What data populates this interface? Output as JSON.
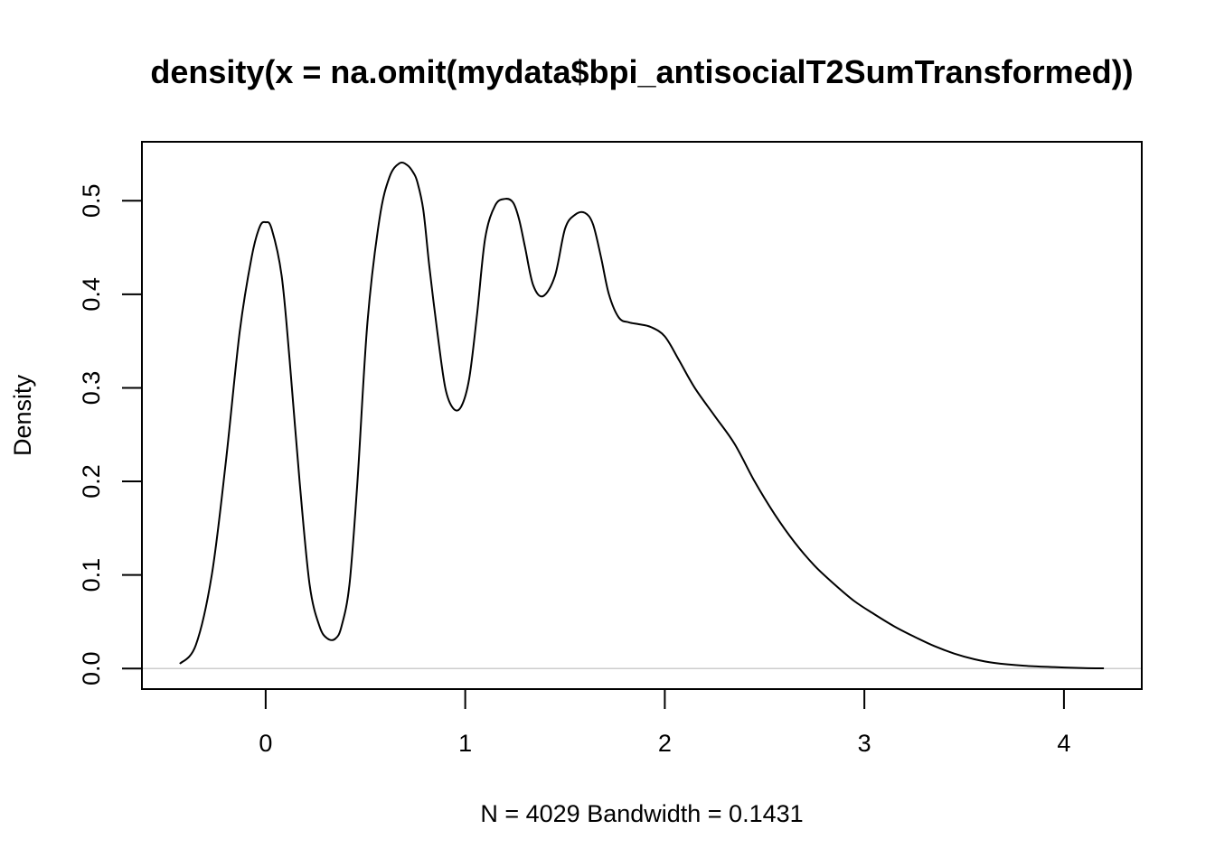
{
  "chart_data": {
    "type": "line",
    "title": "density(x = na.omit(mydata$bpi_antisocialT2SumTransformed))",
    "xlabel": "N = 4029   Bandwidth = 0.1431",
    "ylabel": "Density",
    "xlim": [
      -0.62,
      4.39
    ],
    "ylim": [
      -0.022,
      0.563
    ],
    "x_ticks": [
      0,
      1,
      2,
      3,
      4
    ],
    "x_tick_labels": [
      "0",
      "1",
      "2",
      "3",
      "4"
    ],
    "y_ticks": [
      0.0,
      0.1,
      0.2,
      0.3,
      0.4,
      0.5
    ],
    "y_tick_labels": [
      "0.0",
      "0.1",
      "0.2",
      "0.3",
      "0.4",
      "0.5"
    ],
    "grid": false,
    "zero_line": true,
    "colors": {
      "line": "#000000",
      "zero_line": "#cccccc",
      "box": "#000000"
    },
    "series": [
      {
        "x": [
          -0.43,
          -0.35,
          -0.27,
          -0.2,
          -0.13,
          -0.07,
          -0.03,
          0.0,
          0.03,
          0.08,
          0.12,
          0.17,
          0.22,
          0.27,
          0.31,
          0.35,
          0.38,
          0.42,
          0.46,
          0.51,
          0.57,
          0.62,
          0.67,
          0.71,
          0.74,
          0.76,
          0.79,
          0.82,
          0.86,
          0.9,
          0.94,
          0.98,
          1.02,
          1.06,
          1.1,
          1.15,
          1.2,
          1.24,
          1.27,
          1.3,
          1.34,
          1.39,
          1.45,
          1.5,
          1.55,
          1.6,
          1.64,
          1.68,
          1.72,
          1.77,
          1.82,
          1.87,
          1.93,
          2.0,
          2.07,
          2.15,
          2.25,
          2.35,
          2.45,
          2.55,
          2.65,
          2.75,
          2.85,
          2.95,
          3.05,
          3.15,
          3.25,
          3.35,
          3.45,
          3.55,
          3.65,
          3.8,
          3.95,
          4.1,
          4.2
        ],
        "y": [
          0.005,
          0.025,
          0.1,
          0.22,
          0.36,
          0.44,
          0.472,
          0.477,
          0.47,
          0.42,
          0.33,
          0.2,
          0.09,
          0.045,
          0.032,
          0.032,
          0.045,
          0.09,
          0.2,
          0.37,
          0.48,
          0.525,
          0.54,
          0.538,
          0.53,
          0.52,
          0.49,
          0.43,
          0.36,
          0.3,
          0.278,
          0.28,
          0.31,
          0.38,
          0.46,
          0.495,
          0.502,
          0.498,
          0.48,
          0.45,
          0.41,
          0.398,
          0.42,
          0.47,
          0.485,
          0.487,
          0.475,
          0.44,
          0.4,
          0.375,
          0.37,
          0.368,
          0.365,
          0.355,
          0.33,
          0.3,
          0.27,
          0.24,
          0.2,
          0.165,
          0.135,
          0.11,
          0.09,
          0.072,
          0.058,
          0.045,
          0.034,
          0.024,
          0.016,
          0.01,
          0.006,
          0.003,
          0.0015,
          0.0005,
          0.0002
        ]
      }
    ]
  }
}
